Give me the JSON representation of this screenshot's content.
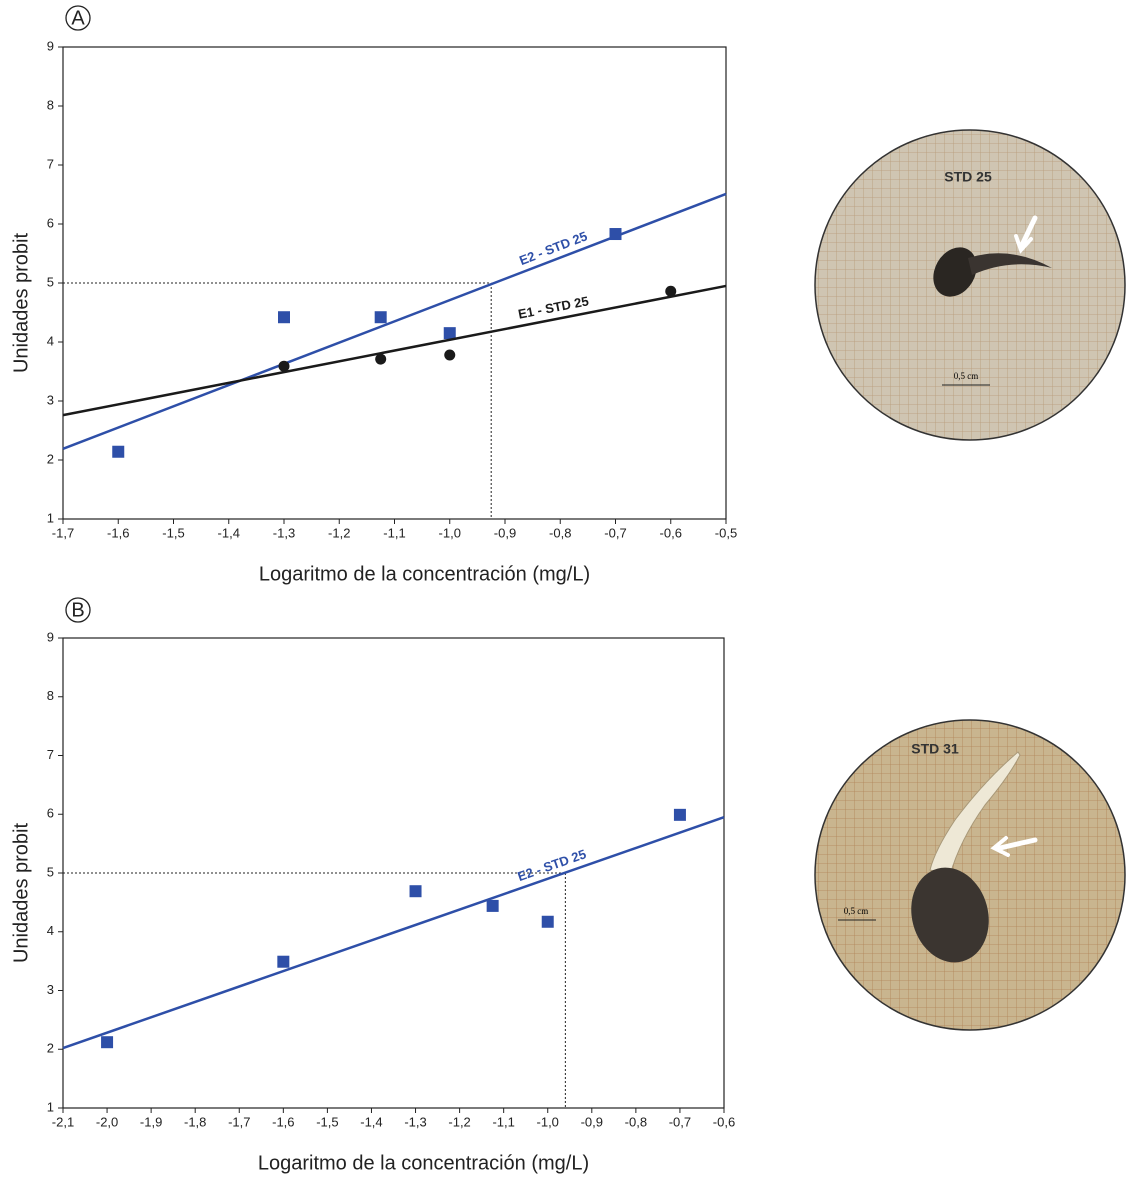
{
  "chart_data": [
    {
      "type": "scatter",
      "panel": "A",
      "x_label": "Logaritmo de la concentración (mg/L)",
      "y_label": "Unidades probit",
      "xlim": [
        -1.7,
        -0.5
      ],
      "xticks": [
        {
          "value": -1.7,
          "label": "-1,7"
        },
        {
          "value": -1.6,
          "label": "-1,6"
        },
        {
          "value": -1.5,
          "label": "-1,5"
        },
        {
          "value": -1.4,
          "label": "-1,4"
        },
        {
          "value": -1.3,
          "label": "-1,3"
        },
        {
          "value": -1.2,
          "label": "-1,2"
        },
        {
          "value": -1.1,
          "label": "-1,1"
        },
        {
          "value": -1.0,
          "label": "-1,0"
        },
        {
          "value": -0.9,
          "label": "-0,9"
        },
        {
          "value": -0.8,
          "label": "-0,8"
        },
        {
          "value": -0.7,
          "label": "-0,7"
        },
        {
          "value": -0.6,
          "label": "-0,6"
        },
        {
          "value": -0.5,
          "label": "-0,5"
        }
      ],
      "ylim": [
        1,
        9
      ],
      "yticks": [
        1,
        2,
        3,
        4,
        5,
        6,
        7,
        8,
        9
      ],
      "reference": {
        "x": -0.925,
        "y": 5
      },
      "series": [
        {
          "color": "#2e4fa8",
          "marker": "square",
          "x": [
            -1.6,
            -1.3,
            -1.125,
            -1.0,
            -0.7
          ],
          "values": [
            2.14,
            4.42,
            4.42,
            4.15,
            5.83
          ],
          "fit": {
            "label": "E2 - STD 25",
            "x": [
              -1.7,
              -0.5
            ],
            "values": [
              2.19,
              6.51
            ]
          }
        },
        {
          "color": "#1a1a1a",
          "marker": "circle",
          "x": [
            -1.3,
            -1.125,
            -1.0,
            -0.6
          ],
          "values": [
            3.59,
            3.71,
            3.78,
            4.86
          ],
          "fit": {
            "label": "E1 - STD 25",
            "x": [
              -1.7,
              -0.5
            ],
            "values": [
              2.76,
              4.95
            ]
          }
        }
      ]
    },
    {
      "type": "scatter",
      "panel": "B",
      "x_label": "Logaritmo de la concentración (mg/L)",
      "y_label": "Unidades probit",
      "xlim": [
        -2.1,
        -0.6
      ],
      "xticks": [
        {
          "value": -2.1,
          "label": "-2,1"
        },
        {
          "value": -2.0,
          "label": "-2,0"
        },
        {
          "value": -1.9,
          "label": "-1,9"
        },
        {
          "value": -1.8,
          "label": "-1,8"
        },
        {
          "value": -1.7,
          "label": "-1,7"
        },
        {
          "value": -1.6,
          "label": "-1,6"
        },
        {
          "value": -1.5,
          "label": "-1,5"
        },
        {
          "value": -1.4,
          "label": "-1,4"
        },
        {
          "value": -1.3,
          "label": "-1,3"
        },
        {
          "value": -1.2,
          "label": "-1,2"
        },
        {
          "value": -1.1,
          "label": "-1,1"
        },
        {
          "value": -1.0,
          "label": "-1,0"
        },
        {
          "value": -0.9,
          "label": "-0,9"
        },
        {
          "value": -0.8,
          "label": "-0,8"
        },
        {
          "value": -0.7,
          "label": "-0,7"
        },
        {
          "value": -0.6,
          "label": "-0,6"
        }
      ],
      "ylim": [
        1,
        9
      ],
      "yticks": [
        1,
        2,
        3,
        4,
        5,
        6,
        7,
        8,
        9
      ],
      "reference": {
        "x": -0.96,
        "y": 5
      },
      "series": [
        {
          "color": "#2e4fa8",
          "marker": "square",
          "x": [
            -2.0,
            -1.6,
            -1.3,
            -1.125,
            -1.0,
            -0.7
          ],
          "values": [
            2.12,
            3.49,
            4.69,
            4.44,
            4.17,
            5.99
          ],
          "fit": {
            "label": "E2 - STD 25",
            "x": [
              -2.1,
              -0.6
            ],
            "values": [
              2.02,
              5.95
            ]
          }
        }
      ]
    }
  ],
  "photos": [
    {
      "label": "STD 25",
      "scale": "0,5 cm"
    },
    {
      "label": "STD 31",
      "scale": "0,5 cm"
    }
  ]
}
